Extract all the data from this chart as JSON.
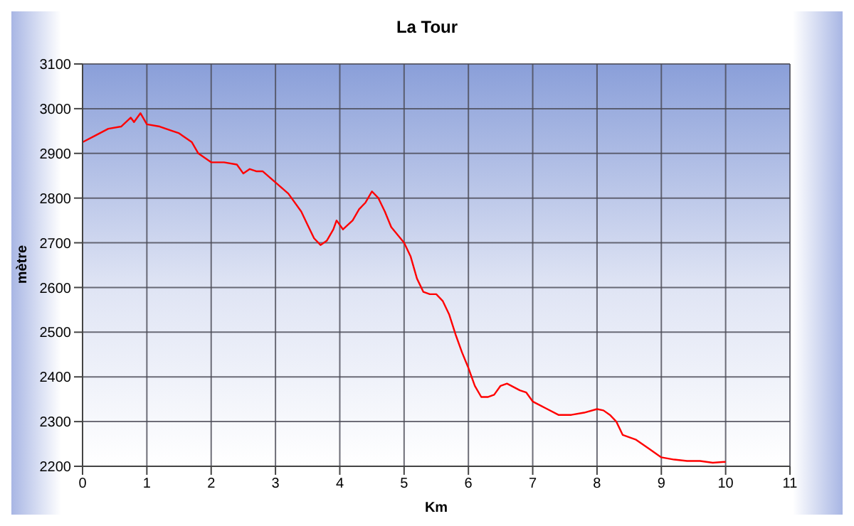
{
  "chart_data": {
    "type": "line",
    "title": "La Tour",
    "xlabel": "Km",
    "ylabel": "mètre",
    "x": [
      0,
      0.2,
      0.4,
      0.6,
      0.75,
      0.8,
      0.9,
      1.0,
      1.2,
      1.4,
      1.5,
      1.7,
      1.8,
      2.0,
      2.2,
      2.4,
      2.5,
      2.6,
      2.7,
      2.8,
      3.0,
      3.2,
      3.4,
      3.5,
      3.6,
      3.7,
      3.8,
      3.9,
      3.95,
      4.05,
      4.2,
      4.3,
      4.4,
      4.5,
      4.6,
      4.7,
      4.8,
      5.0,
      5.1,
      5.2,
      5.3,
      5.4,
      5.5,
      5.6,
      5.7,
      5.8,
      5.9,
      6.0,
      6.1,
      6.2,
      6.3,
      6.4,
      6.5,
      6.6,
      6.8,
      6.9,
      7.0,
      7.2,
      7.4,
      7.6,
      7.8,
      8.0,
      8.1,
      8.2,
      8.3,
      8.4,
      8.6,
      8.8,
      9.0,
      9.2,
      9.4,
      9.6,
      9.8,
      10.0
    ],
    "series": [
      {
        "color": "#ff0000",
        "values": [
          2925,
          2940,
          2955,
          2960,
          2980,
          2970,
          2990,
          2965,
          2960,
          2950,
          2945,
          2925,
          2900,
          2880,
          2880,
          2875,
          2855,
          2865,
          2860,
          2860,
          2835,
          2810,
          2770,
          2740,
          2710,
          2695,
          2705,
          2730,
          2750,
          2730,
          2750,
          2775,
          2790,
          2815,
          2800,
          2770,
          2735,
          2700,
          2670,
          2620,
          2590,
          2585,
          2585,
          2570,
          2540,
          2495,
          2455,
          2420,
          2380,
          2355,
          2355,
          2360,
          2380,
          2385,
          2370,
          2365,
          2345,
          2330,
          2315,
          2315,
          2320,
          2328,
          2325,
          2315,
          2300,
          2270,
          2260,
          2240,
          2220,
          2215,
          2212,
          2212,
          2208,
          2210
        ]
      }
    ],
    "xlim": [
      0,
      11
    ],
    "xticks": [
      0,
      1,
      2,
      3,
      4,
      5,
      6,
      7,
      8,
      9,
      10,
      11
    ],
    "ylim": [
      2200,
      3100
    ],
    "yticks": [
      2200,
      2300,
      2400,
      2500,
      2600,
      2700,
      2800,
      2900,
      3000,
      3100
    ],
    "grid": true,
    "marker": "none",
    "line_style": "solid"
  }
}
